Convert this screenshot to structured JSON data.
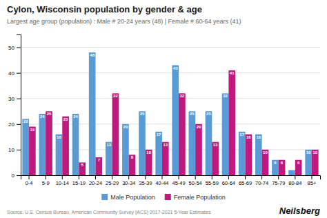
{
  "chart_data": {
    "type": "bar",
    "title": "Cylon, Wisconsin population by gender & age",
    "subtitle": "Largest age group (population) : Male # 20-24 years (48) | Female # 60-64 years (41)",
    "categories": [
      "0-4",
      "5-9",
      "10-14",
      "15-19",
      "20-24",
      "25-29",
      "30-34",
      "35-39",
      "40-44",
      "45-49",
      "50-54",
      "55-59",
      "60-64",
      "65-69",
      "70-74",
      "75-79",
      "80-84",
      "85+"
    ],
    "series": [
      {
        "name": "Male Population",
        "color": "#5B9BD5",
        "values": [
          22,
          24,
          16,
          24,
          48,
          13,
          20,
          25,
          17,
          43,
          25,
          25,
          32,
          17,
          16,
          6,
          2,
          10
        ],
        "value_labels": [
          "22",
          "24",
          "16",
          "24",
          "48",
          "13",
          "20",
          "25",
          "17",
          "43",
          "25",
          "25",
          "32",
          "17",
          "16",
          "6",
          null,
          "10"
        ]
      },
      {
        "name": "Female Population",
        "color": "#C0187C",
        "values": [
          19,
          25,
          23,
          5,
          7,
          32,
          8,
          10,
          13,
          32,
          20,
          13,
          41,
          16,
          10,
          6,
          6,
          10
        ]
      }
    ],
    "ylim": [
      0,
      55
    ],
    "yticks": [
      0,
      10,
      20,
      30,
      40,
      50
    ],
    "grid": true,
    "legend": "bottom",
    "data_labels": true,
    "annotations": [
      "Source: U.S. Census Bureau, American Community Survey (ACS) 2017-2021 5-Year Estimates",
      "Neilsberg"
    ]
  }
}
